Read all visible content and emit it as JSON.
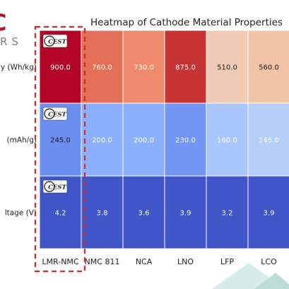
{
  "branding": {
    "logo_fragment_top": "C",
    "logo_fragment_bottom": "RS",
    "brand_color": "#b0162a"
  },
  "cell_badge": {
    "text": "CEST"
  },
  "chart_data": {
    "type": "heatmap",
    "title": "Heatmap of Cathode Material Properties",
    "columns": [
      "LMR-NMC",
      "NMC 811",
      "NCA",
      "LNO",
      "LFP",
      "LCO"
    ],
    "rows": [
      {
        "label": "y (Wh/kg)",
        "values": [
          900.0,
          760.0,
          730.0,
          875.0,
          510.0,
          560.0
        ],
        "display": [
          "900.0",
          "760.0",
          "730.0",
          "875.0",
          "510.0",
          "560.0"
        ]
      },
      {
        "label": "(mAh/g)",
        "values": [
          245.0,
          200.0,
          200.0,
          230.0,
          160.0,
          145.0
        ],
        "display": [
          "245.0",
          "200.0",
          "200.0",
          "230.0",
          "160.0",
          "145.0"
        ]
      },
      {
        "label": "ltage (V)",
        "values": [
          4.2,
          3.8,
          3.6,
          3.9,
          3.2,
          3.9
        ],
        "display": [
          "4.2",
          "3.8",
          "3.6",
          "3.9",
          "3.2",
          "3.9"
        ]
      }
    ],
    "colormap": "coolwarm",
    "highlight": {
      "column": "LMR-NMC",
      "style": "dashed box",
      "color": "#d42a2a"
    },
    "grid": true,
    "legend": "none",
    "cell_colors": [
      [
        "#b40426",
        "#e57058",
        "#f08a6c",
        "#c53334",
        "#f2cbb7",
        "#f4c4a9"
      ],
      [
        "#6b8ff0",
        "#8db0fe",
        "#8db0fe",
        "#7396f5",
        "#a9c6fd",
        "#b6cefa"
      ],
      [
        "#4055c8",
        "#4055c8",
        "#4055c8",
        "#4055c8",
        "#4055c8",
        "#4055c8"
      ]
    ]
  }
}
